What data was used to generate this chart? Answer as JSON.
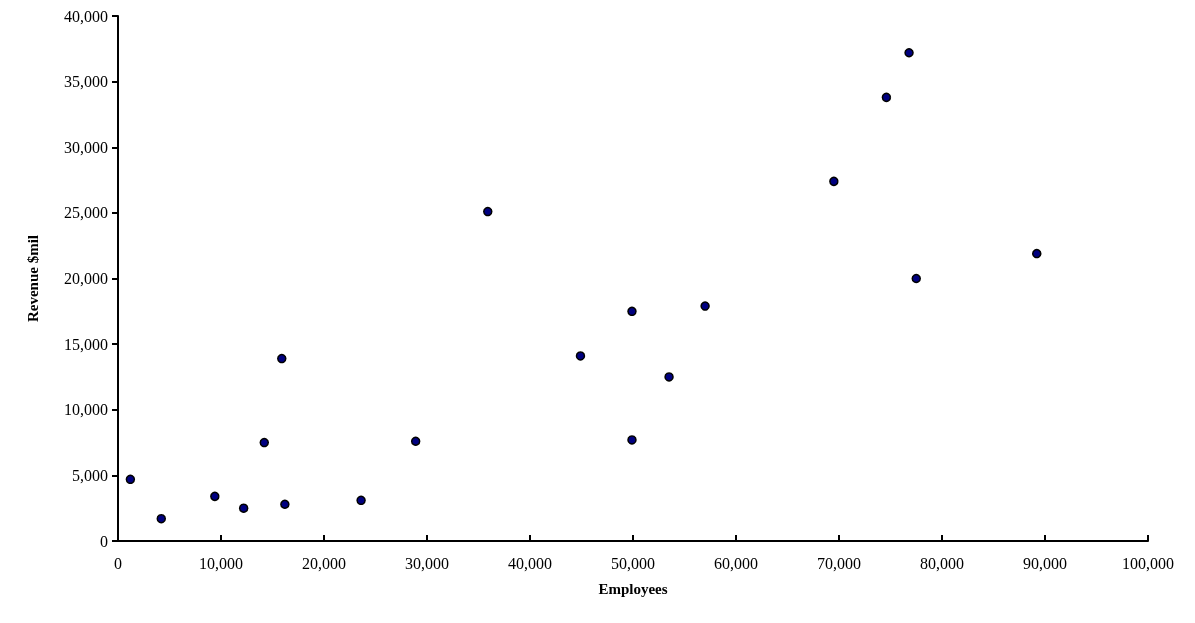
{
  "chart_data": {
    "type": "scatter",
    "xlabel": "Employees",
    "ylabel": "Revenue $mil",
    "x": [
      1200,
      4200,
      9400,
      12200,
      14200,
      15900,
      16200,
      23600,
      28900,
      35900,
      44900,
      49900,
      49900,
      53500,
      57000,
      69500,
      74600,
      76800,
      77500,
      89200
    ],
    "values": [
      4700,
      1700,
      3400,
      2500,
      7500,
      13900,
      2800,
      3100,
      7600,
      25100,
      14100,
      17500,
      7700,
      12500,
      17900,
      27400,
      33800,
      37200,
      20000,
      21900
    ],
    "color": "#000080",
    "marker": "circle",
    "grid": false,
    "xlim": [
      0,
      100000
    ],
    "xticks": [
      0,
      {
        "value": 10000,
        "label": "10,000"
      },
      {
        "value": 20000,
        "label": "20,000"
      },
      {
        "value": 30000,
        "label": "30,000"
      },
      {
        "value": 40000,
        "label": "40,000"
      },
      {
        "value": 50000,
        "label": "50,000"
      },
      {
        "value": 60000,
        "label": "60,000"
      },
      {
        "value": 70000,
        "label": "70,000"
      },
      {
        "value": 80000,
        "label": "80,000"
      },
      {
        "value": 90000,
        "label": "90,000"
      },
      {
        "value": 100000,
        "label": "100,000"
      }
    ],
    "ylim": [
      0,
      40000
    ],
    "yticks": [
      0,
      {
        "value": 5000,
        "label": "5,000"
      },
      {
        "value": 10000,
        "label": "10,000"
      },
      {
        "value": 15000,
        "label": "15,000"
      },
      {
        "value": 20000,
        "label": "20,000"
      },
      {
        "value": 25000,
        "label": "25,000"
      },
      {
        "value": 30000,
        "label": "30,000"
      },
      {
        "value": 35000,
        "label": "35,000"
      },
      {
        "value": 40000,
        "label": "40,000"
      }
    ]
  }
}
